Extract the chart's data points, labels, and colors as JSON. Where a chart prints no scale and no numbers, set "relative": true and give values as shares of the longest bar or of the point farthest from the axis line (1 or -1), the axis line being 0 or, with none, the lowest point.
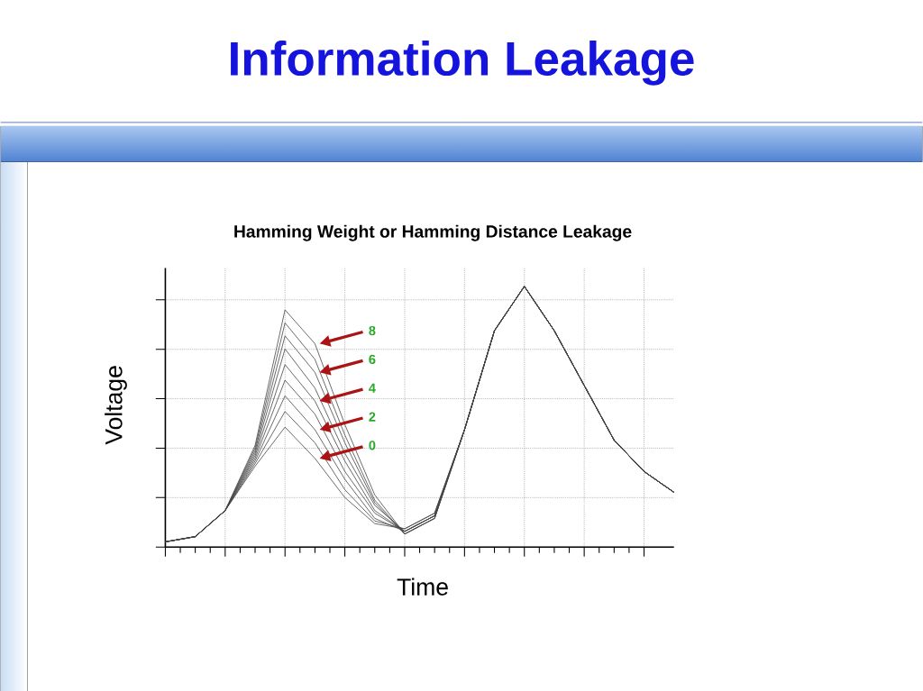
{
  "chart_data": {
    "type": "line",
    "title": "Information Leakage",
    "subtitle": "Hamming Weight or Hamming Distance Leakage",
    "xlabel": "Time",
    "ylabel": "Voltage",
    "relative": true,
    "grid": true,
    "annotations": [
      "8",
      "6",
      "4",
      "2",
      "0"
    ],
    "categories": [
      null,
      null,
      null,
      null,
      null,
      null,
      null,
      null,
      null,
      null,
      null,
      null,
      null,
      null,
      null,
      null,
      null,
      null
    ],
    "series": [
      {
        "color": "#444444",
        "values": [
          0.02,
          0.04,
          0.14,
          0.31,
          0.46,
          0.34,
          0.19,
          0.09,
          0.07,
          0.13,
          0.45,
          0.83,
          1.0,
          0.83,
          0.62,
          0.41,
          0.29,
          0.21
        ]
      },
      {
        "color": "#444444",
        "values": [
          0.02,
          0.04,
          0.14,
          0.32,
          0.52,
          0.4,
          0.22,
          0.1,
          0.07,
          0.13,
          0.45,
          0.83,
          1.0,
          0.83,
          0.62,
          0.41,
          0.29,
          0.21
        ]
      },
      {
        "color": "#444444",
        "values": [
          0.02,
          0.04,
          0.14,
          0.33,
          0.58,
          0.45,
          0.26,
          0.11,
          0.06,
          0.12,
          0.45,
          0.83,
          1.0,
          0.83,
          0.62,
          0.41,
          0.29,
          0.21
        ]
      },
      {
        "color": "#444444",
        "values": [
          0.02,
          0.04,
          0.14,
          0.34,
          0.64,
          0.51,
          0.29,
          0.13,
          0.06,
          0.12,
          0.45,
          0.83,
          1.0,
          0.83,
          0.62,
          0.41,
          0.29,
          0.21
        ]
      },
      {
        "color": "#444444",
        "values": [
          0.02,
          0.04,
          0.14,
          0.35,
          0.7,
          0.56,
          0.33,
          0.14,
          0.06,
          0.12,
          0.45,
          0.83,
          1.0,
          0.83,
          0.62,
          0.41,
          0.29,
          0.21
        ]
      },
      {
        "color": "#444444",
        "values": [
          0.02,
          0.04,
          0.14,
          0.36,
          0.76,
          0.61,
          0.36,
          0.16,
          0.06,
          0.12,
          0.45,
          0.83,
          1.0,
          0.83,
          0.62,
          0.41,
          0.29,
          0.21
        ]
      },
      {
        "color": "#444444",
        "values": [
          0.02,
          0.04,
          0.14,
          0.37,
          0.81,
          0.67,
          0.4,
          0.17,
          0.05,
          0.11,
          0.45,
          0.83,
          1.0,
          0.83,
          0.62,
          0.41,
          0.29,
          0.21
        ]
      },
      {
        "color": "#444444",
        "values": [
          0.02,
          0.04,
          0.14,
          0.38,
          0.86,
          0.72,
          0.43,
          0.18,
          0.05,
          0.11,
          0.45,
          0.83,
          1.0,
          0.83,
          0.62,
          0.41,
          0.29,
          0.21
        ]
      },
      {
        "color": "#444444",
        "values": [
          0.02,
          0.04,
          0.14,
          0.39,
          0.91,
          0.78,
          0.47,
          0.2,
          0.05,
          0.11,
          0.45,
          0.83,
          1.0,
          0.83,
          0.62,
          0.41,
          0.29,
          0.21
        ]
      }
    ]
  }
}
